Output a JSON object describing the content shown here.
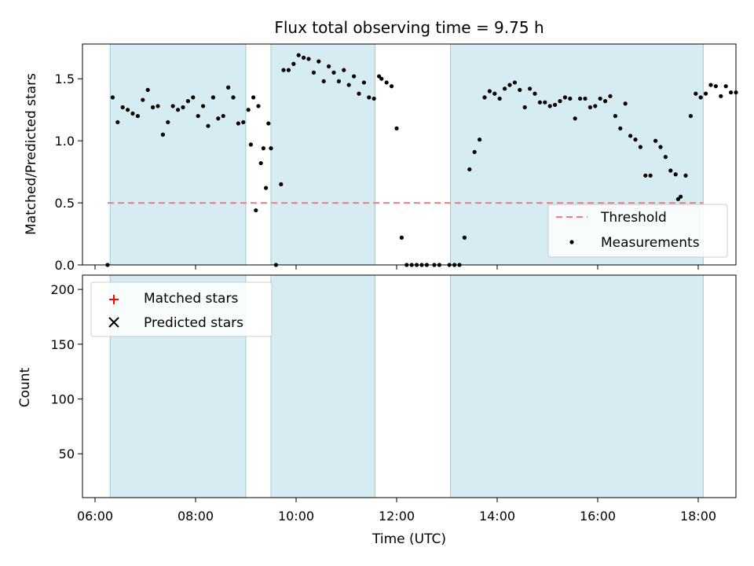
{
  "chart_data": {
    "type": "scatter",
    "title": "Flux total observing time = 9.75 h",
    "x_unit": "hours (UTC)",
    "xlabel": "Time (UTC)",
    "xlim": [
      5.75,
      18.75
    ],
    "x_tick_values": [
      6,
      8,
      10,
      12,
      14,
      16,
      18
    ],
    "x_tick_labels": [
      "06:00",
      "08:00",
      "10:00",
      "12:00",
      "14:00",
      "16:00",
      "18:00"
    ],
    "shaded_intervals": [
      [
        6.3,
        9.0
      ],
      [
        9.5,
        11.57
      ],
      [
        13.07,
        18.1
      ]
    ],
    "shade_color": "#add8e6",
    "panels": [
      {
        "id": "ratio",
        "ylabel": "Matched/Predicted stars",
        "ylim": [
          0,
          1.78
        ],
        "y_ticks": [
          "0.0",
          "0.5",
          "1.0",
          "1.5"
        ],
        "y_tick_values": [
          0,
          0.5,
          1.0,
          1.5
        ],
        "legend_position": "lower-right",
        "threshold": {
          "name": "Threshold",
          "value": 0.5,
          "x_range": [
            6.25,
            18.1
          ],
          "color": "#f08080"
        },
        "series": [
          {
            "name": "Measurements",
            "color": "#000000",
            "marker": "dot",
            "points": [
              [
                6.25,
                0.0
              ],
              [
                6.35,
                1.35
              ],
              [
                6.45,
                1.15
              ],
              [
                6.55,
                1.27
              ],
              [
                6.65,
                1.25
              ],
              [
                6.75,
                1.22
              ],
              [
                6.85,
                1.2
              ],
              [
                6.95,
                1.33
              ],
              [
                7.05,
                1.41
              ],
              [
                7.15,
                1.27
              ],
              [
                7.25,
                1.28
              ],
              [
                7.35,
                1.05
              ],
              [
                7.45,
                1.15
              ],
              [
                7.55,
                1.28
              ],
              [
                7.65,
                1.25
              ],
              [
                7.75,
                1.27
              ],
              [
                7.85,
                1.32
              ],
              [
                7.95,
                1.35
              ],
              [
                8.05,
                1.2
              ],
              [
                8.15,
                1.28
              ],
              [
                8.25,
                1.12
              ],
              [
                8.35,
                1.35
              ],
              [
                8.45,
                1.18
              ],
              [
                8.55,
                1.2
              ],
              [
                8.65,
                1.43
              ],
              [
                8.75,
                1.35
              ],
              [
                8.85,
                1.14
              ],
              [
                8.95,
                1.15
              ],
              [
                9.05,
                1.25
              ],
              [
                9.15,
                1.35
              ],
              [
                9.25,
                1.28
              ],
              [
                9.35,
                0.94
              ],
              [
                9.45,
                1.14
              ],
              [
                9.1,
                0.97
              ],
              [
                9.2,
                0.44
              ],
              [
                9.3,
                0.82
              ],
              [
                9.4,
                0.62
              ],
              [
                9.5,
                0.94
              ],
              [
                9.6,
                0.0
              ],
              [
                9.7,
                0.65
              ],
              [
                9.75,
                1.57
              ],
              [
                9.85,
                1.57
              ],
              [
                9.95,
                1.62
              ],
              [
                10.05,
                1.69
              ],
              [
                10.15,
                1.67
              ],
              [
                10.25,
                1.66
              ],
              [
                10.35,
                1.55
              ],
              [
                10.45,
                1.64
              ],
              [
                10.55,
                1.48
              ],
              [
                10.65,
                1.6
              ],
              [
                10.75,
                1.55
              ],
              [
                10.85,
                1.48
              ],
              [
                10.95,
                1.57
              ],
              [
                11.05,
                1.45
              ],
              [
                11.15,
                1.52
              ],
              [
                11.25,
                1.38
              ],
              [
                11.35,
                1.47
              ],
              [
                11.45,
                1.35
              ],
              [
                11.55,
                1.34
              ],
              [
                11.65,
                1.52
              ],
              [
                11.7,
                1.5
              ],
              [
                11.8,
                1.47
              ],
              [
                11.9,
                1.44
              ],
              [
                12.0,
                1.1
              ],
              [
                12.1,
                0.22
              ],
              [
                12.2,
                0.0
              ],
              [
                12.3,
                0.0
              ],
              [
                12.4,
                0.0
              ],
              [
                12.5,
                0.0
              ],
              [
                12.6,
                0.0
              ],
              [
                12.75,
                0.0
              ],
              [
                12.85,
                0.0
              ],
              [
                13.05,
                0.0
              ],
              [
                13.15,
                0.0
              ],
              [
                13.25,
                0.0
              ],
              [
                13.35,
                0.22
              ],
              [
                13.45,
                0.77
              ],
              [
                13.55,
                0.91
              ],
              [
                13.65,
                1.01
              ],
              [
                13.75,
                1.35
              ],
              [
                13.85,
                1.4
              ],
              [
                13.95,
                1.38
              ],
              [
                14.05,
                1.34
              ],
              [
                14.15,
                1.42
              ],
              [
                14.25,
                1.45
              ],
              [
                14.35,
                1.47
              ],
              [
                14.45,
                1.41
              ],
              [
                14.55,
                1.27
              ],
              [
                14.65,
                1.42
              ],
              [
                14.75,
                1.38
              ],
              [
                14.85,
                1.31
              ],
              [
                14.95,
                1.31
              ],
              [
                15.05,
                1.28
              ],
              [
                15.15,
                1.29
              ],
              [
                15.25,
                1.32
              ],
              [
                15.35,
                1.35
              ],
              [
                15.45,
                1.34
              ],
              [
                15.55,
                1.18
              ],
              [
                15.65,
                1.34
              ],
              [
                15.75,
                1.34
              ],
              [
                15.85,
                1.27
              ],
              [
                15.95,
                1.28
              ],
              [
                16.05,
                1.34
              ],
              [
                16.15,
                1.32
              ],
              [
                16.25,
                1.36
              ],
              [
                16.35,
                1.2
              ],
              [
                16.45,
                1.1
              ],
              [
                16.55,
                1.3
              ],
              [
                16.65,
                1.04
              ],
              [
                16.75,
                1.01
              ],
              [
                16.85,
                0.95
              ],
              [
                16.95,
                0.72
              ],
              [
                17.05,
                0.72
              ],
              [
                17.15,
                1.0
              ],
              [
                17.25,
                0.95
              ],
              [
                17.35,
                0.87
              ],
              [
                17.45,
                0.76
              ],
              [
                17.55,
                0.73
              ],
              [
                17.6,
                0.53
              ],
              [
                17.65,
                0.55
              ],
              [
                17.75,
                0.72
              ],
              [
                17.85,
                1.2
              ],
              [
                17.95,
                1.38
              ],
              [
                18.05,
                1.35
              ],
              [
                18.15,
                1.38
              ],
              [
                18.25,
                1.45
              ],
              [
                18.35,
                1.44
              ],
              [
                18.45,
                1.36
              ],
              [
                18.55,
                1.44
              ],
              [
                18.65,
                1.39
              ],
              [
                18.75,
                1.39
              ]
            ]
          }
        ]
      },
      {
        "id": "counts",
        "ylabel": "Count",
        "ylim": [
          10,
          213
        ],
        "y_ticks": [
          "50",
          "100",
          "150",
          "200"
        ],
        "y_tick_values": [
          50,
          100,
          150,
          200
        ],
        "legend_position": "upper-left",
        "series": [
          {
            "name": "Matched stars",
            "color": "#ff0000",
            "marker": "plus",
            "points": []
          },
          {
            "name": "Predicted stars",
            "color": "#000000",
            "marker": "x",
            "points": []
          }
        ]
      }
    ]
  }
}
